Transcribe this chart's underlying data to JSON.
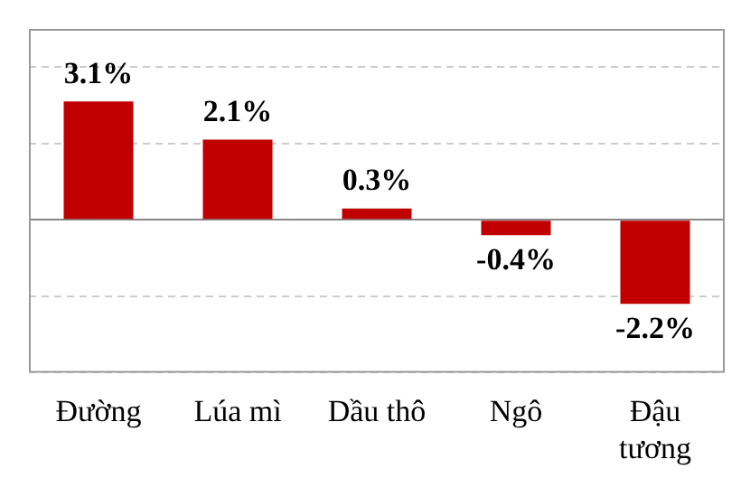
{
  "chart_data": {
    "type": "bar",
    "categories": [
      "Đường",
      "Lúa mì",
      "Dầu thô",
      "Ngô",
      "Đậu tương"
    ],
    "values": [
      3.1,
      2.1,
      0.3,
      -0.4,
      -2.2
    ],
    "value_labels": [
      "3.1%",
      "2.1%",
      "0.3%",
      "-0.4%",
      "-2.2%"
    ],
    "color": "#c00000",
    "ylim": [
      -4,
      5
    ],
    "yticks": [
      {
        "value": -4,
        "label": null
      },
      {
        "value": -2,
        "label": null
      },
      {
        "value": 0,
        "label": null
      },
      {
        "value": 2,
        "label": null
      },
      {
        "value": 4,
        "label": null
      }
    ],
    "grid": "y",
    "tick_labels": "x",
    "legend": false
  }
}
